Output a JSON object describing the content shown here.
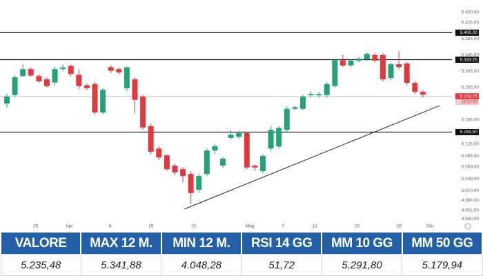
{
  "chart_data": {
    "type": "candlestick",
    "ohlc": [
      [
        5225,
        5250,
        5215,
        5242
      ],
      [
        5246,
        5295,
        5240,
        5290
      ],
      [
        5293,
        5322,
        5290,
        5310
      ],
      [
        5310,
        5314,
        5290,
        5294
      ],
      [
        5293,
        5298,
        5276,
        5280
      ],
      [
        5285,
        5290,
        5264,
        5268
      ],
      [
        5277,
        5316,
        5270,
        5310
      ],
      [
        5310,
        5322,
        5305,
        5314
      ],
      [
        5318,
        5322,
        5292,
        5298
      ],
      [
        5296,
        5310,
        5260,
        5268
      ],
      [
        5270,
        5275,
        5258,
        5263
      ],
      [
        5273,
        5278,
        5198,
        5203
      ],
      [
        5203,
        5263,
        5198,
        5259
      ],
      [
        5315,
        5320,
        5300,
        5306
      ],
      [
        5310,
        5314,
        5296,
        5302
      ],
      [
        5263,
        5318,
        5255,
        5314
      ],
      [
        5285,
        5290,
        5200,
        5234
      ],
      [
        5242,
        5246,
        5160,
        5166
      ],
      [
        5169,
        5175,
        5100,
        5106
      ],
      [
        5114,
        5120,
        5085,
        5092
      ],
      [
        5097,
        5100,
        5058,
        5063
      ],
      [
        5072,
        5076,
        5048,
        5055
      ],
      [
        5063,
        5068,
        5030,
        5046
      ],
      [
        5051,
        5058,
        4978,
        5004
      ],
      [
        5012,
        5052,
        5005,
        5046
      ],
      [
        5051,
        5115,
        5046,
        5109
      ],
      [
        5109,
        5126,
        5100,
        5120
      ],
      [
        5072,
        5093,
        5066,
        5089
      ],
      [
        5140,
        5160,
        5135,
        5148
      ],
      [
        5143,
        5158,
        5138,
        5152
      ],
      [
        5152,
        5156,
        5063,
        5067
      ],
      [
        5072,
        5075,
        5058,
        5067
      ],
      [
        5058,
        5100,
        5052,
        5096
      ],
      [
        5114,
        5170,
        5108,
        5160
      ],
      [
        5119,
        5170,
        5113,
        5165
      ],
      [
        5160,
        5218,
        5155,
        5212
      ],
      [
        5212,
        5220,
        5208,
        5216
      ],
      [
        5212,
        5247,
        5208,
        5242
      ],
      [
        5246,
        5256,
        5240,
        5249
      ],
      [
        5246,
        5254,
        5240,
        5249
      ],
      [
        5246,
        5278,
        5240,
        5273
      ],
      [
        5268,
        5336,
        5264,
        5332
      ],
      [
        5332,
        5345,
        5315,
        5319
      ],
      [
        5319,
        5334,
        5315,
        5331
      ],
      [
        5331,
        5340,
        5326,
        5336
      ],
      [
        5334,
        5352,
        5330,
        5348
      ],
      [
        5345,
        5350,
        5326,
        5331
      ],
      [
        5345,
        5350,
        5280,
        5285
      ],
      [
        5288,
        5326,
        5282,
        5322
      ],
      [
        5322,
        5355,
        5310,
        5315
      ],
      [
        5324,
        5328,
        5270,
        5276
      ],
      [
        5276,
        5280,
        5248,
        5254
      ],
      [
        5254,
        5258,
        5240,
        5247
      ]
    ],
    "up_color": "#26a17b",
    "down_color": "#e0393e",
    "xlim": [
      -0.86,
      55.2
    ],
    "xticks": [
      {
        "value": 3.6,
        "label": "25"
      },
      {
        "value": 7.8,
        "label": "Apr"
      },
      {
        "value": 12.9,
        "label": "8"
      },
      {
        "value": 18.0,
        "label": "15"
      },
      {
        "value": 23.4,
        "label": "22"
      },
      {
        "value": 30.4,
        "label": "Mag"
      },
      {
        "value": 34.5,
        "label": "7"
      },
      {
        "value": 38.5,
        "label": "13"
      },
      {
        "value": 43.8,
        "label": "20"
      },
      {
        "value": 49.0,
        "label": "28"
      },
      {
        "value": 52.9,
        "label": "Giu"
      }
    ],
    "ylim": [
      4920,
      5480
    ],
    "yticks": [
      {
        "value": 5450,
        "label": "5.450,00"
      },
      {
        "value": 5425,
        "label": "5.425,00"
      },
      {
        "value": 5385,
        "label": "5.385,00"
      },
      {
        "value": 5345,
        "label": "5.345,00"
      },
      {
        "value": 5305,
        "label": "5.305,00"
      },
      {
        "value": 5265,
        "label": "5.265,00"
      },
      {
        "value": 5185,
        "label": "5.185,00"
      },
      {
        "value": 5125,
        "label": "5.125,00"
      },
      {
        "value": 5095,
        "label": "5.095,00"
      },
      {
        "value": 5069,
        "label": "5.069,00"
      },
      {
        "value": 5039,
        "label": "5.039,00"
      },
      {
        "value": 5010,
        "label": "5.010,00"
      },
      {
        "value": 4986,
        "label": "4.986,00"
      },
      {
        "value": 4961.5,
        "label": "4.961,50"
      },
      {
        "value": 4940.5,
        "label": "4.940,50"
      }
    ],
    "levels": [
      {
        "value": 5400,
        "label": "5.400,00"
      },
      {
        "value": 5333.25,
        "label": "5.333,25"
      },
      {
        "value": 5154.5,
        "label": "5.154,50"
      }
    ],
    "last_price": {
      "value": 5242.75,
      "label": "5.242,75",
      "time": "15:20:50"
    },
    "trendline": {
      "x": [
        22.2,
        54.1
      ],
      "y": [
        4964.5,
        5220
      ]
    }
  },
  "table": {
    "headers": [
      "VALORE",
      "MAX 12 M.",
      "MIN 12 M.",
      "RSI 14 GG",
      "MM 10 GG",
      "MM 50 GG"
    ],
    "values": [
      "5.235,48",
      "5.341,88",
      "4.048,28",
      "51,72",
      "5.291,80",
      "5.179,94"
    ]
  }
}
